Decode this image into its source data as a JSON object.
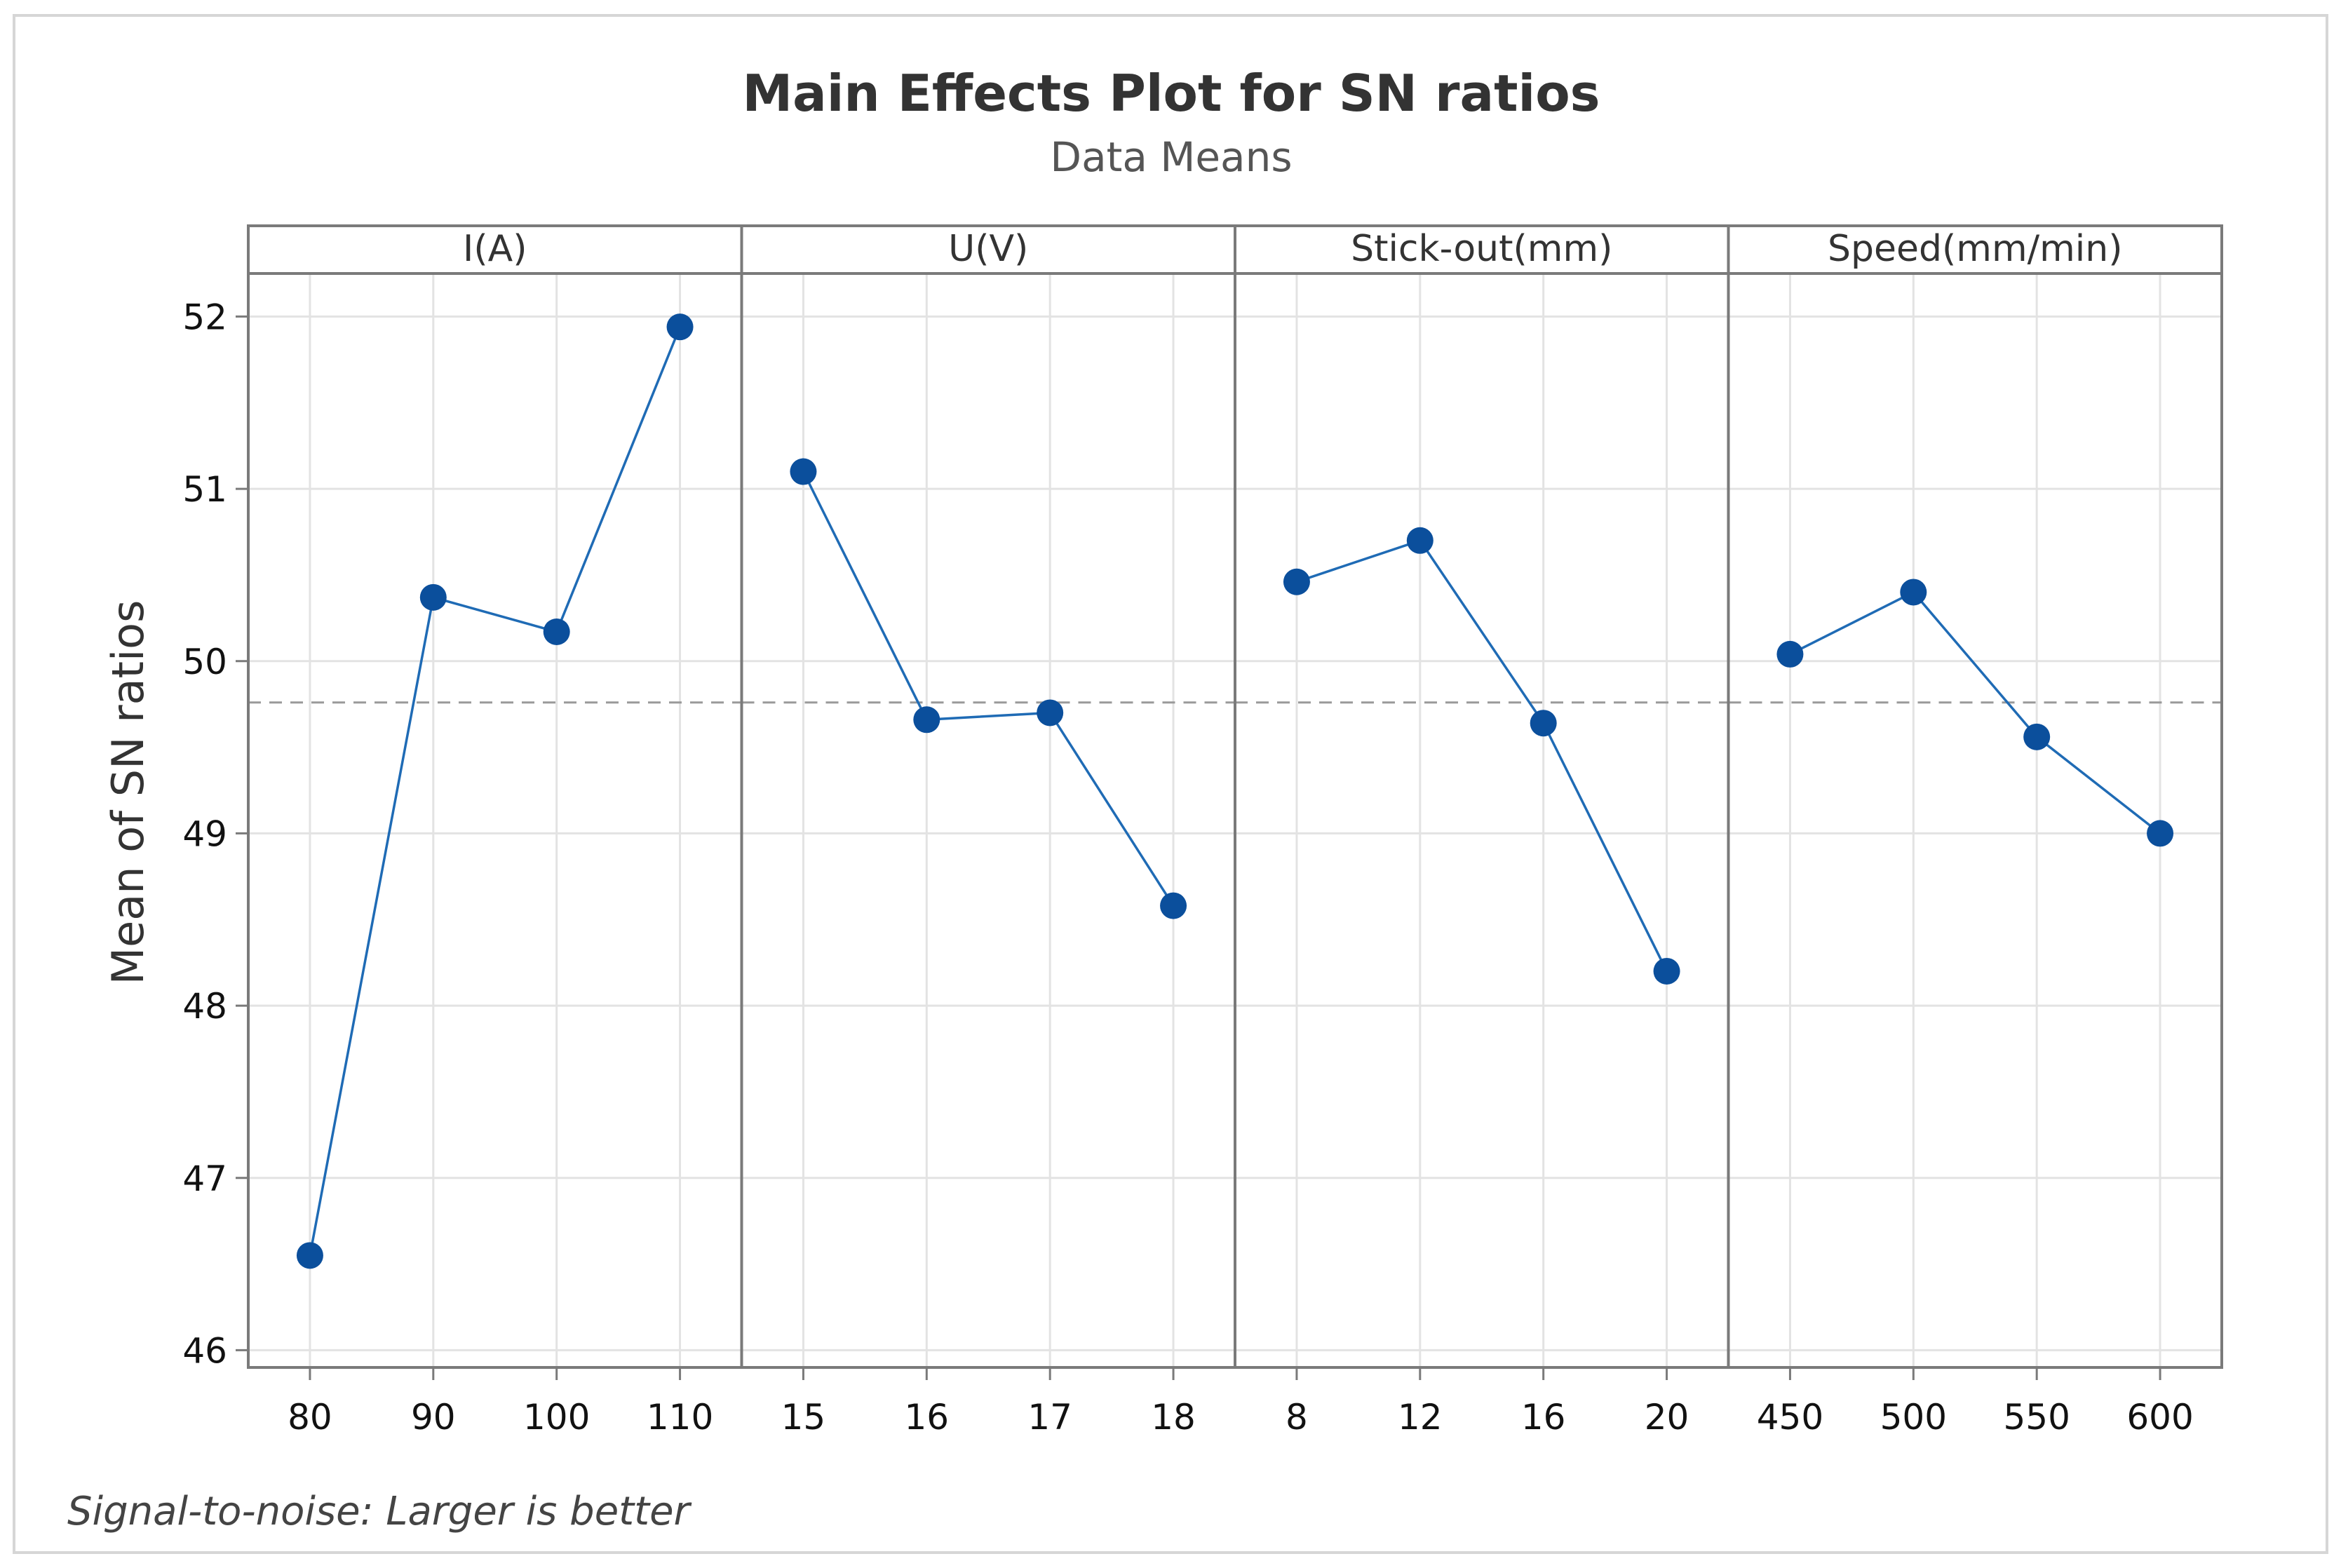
{
  "chart_data": {
    "type": "line",
    "title": "Main Effects Plot for SN ratios",
    "subtitle": "Data Means",
    "ylabel": "Mean of SN ratios",
    "ylim": [
      45.9,
      52.25
    ],
    "yticks": [
      46,
      47,
      48,
      49,
      50,
      51,
      52
    ],
    "grid": true,
    "reference_line": 49.76,
    "footnote": "Signal-to-noise: Larger is better",
    "colors": {
      "line": "#1f6bb5",
      "marker": "#0b4f9c",
      "reference": "#9a9a9a",
      "grid": "#e3e3e3",
      "frame": "#7a7a7a"
    },
    "panels": [
      {
        "factor": "I(A)",
        "levels": [
          "80",
          "90",
          "100",
          "110"
        ],
        "values": [
          46.55,
          50.37,
          50.17,
          51.94
        ]
      },
      {
        "factor": "U(V)",
        "levels": [
          "15",
          "16",
          "17",
          "18"
        ],
        "values": [
          51.1,
          49.66,
          49.7,
          48.58
        ]
      },
      {
        "factor": "Stick-out(mm)",
        "levels": [
          "8",
          "12",
          "16",
          "20"
        ],
        "values": [
          50.46,
          50.7,
          49.64,
          48.2
        ]
      },
      {
        "factor": "Speed(mm/min)",
        "levels": [
          "450",
          "500",
          "550",
          "600"
        ],
        "values": [
          50.04,
          50.4,
          49.56,
          49.0
        ]
      }
    ]
  }
}
